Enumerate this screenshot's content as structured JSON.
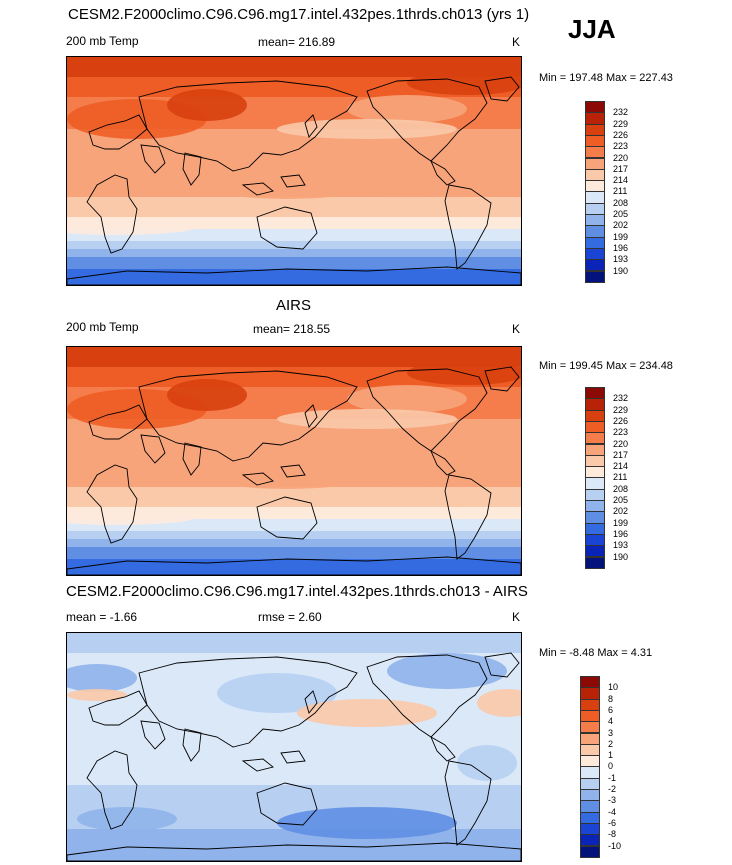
{
  "season": "JJA",
  "panels": [
    {
      "title": "CESM2.F2000climo.C96.C96.mg17.intel.432pes.1thrds.ch013 (yrs 1)",
      "left_label": "200 mb Temp",
      "center_label": "mean= 216.89",
      "unit": "K",
      "minmax": "Min = 197.48 Max = 227.43",
      "colorbar": {
        "labels": [
          "232",
          "229",
          "226",
          "223",
          "220",
          "217",
          "214",
          "211",
          "208",
          "205",
          "202",
          "199",
          "196",
          "193",
          "190"
        ],
        "colors": [
          "#8b0a05",
          "#b82308",
          "#d8400f",
          "#ee5d25",
          "#f47d4b",
          "#f7a47a",
          "#fac9a9",
          "#fdeadb",
          "#dbe8f8",
          "#b7d0f2",
          "#8fb3ea",
          "#5f8ee3",
          "#356be0",
          "#1a44d4",
          "#0a24b8",
          "#04127c"
        ]
      }
    },
    {
      "title": "AIRS",
      "left_label": "200 mb Temp",
      "center_label": "mean= 218.55",
      "unit": "K",
      "minmax": "Min = 199.45 Max = 234.48",
      "colorbar": {
        "labels": [
          "232",
          "229",
          "226",
          "223",
          "220",
          "217",
          "214",
          "211",
          "208",
          "205",
          "202",
          "199",
          "196",
          "193",
          "190"
        ],
        "colors": [
          "#8b0a05",
          "#b82308",
          "#d8400f",
          "#ee5d25",
          "#f47d4b",
          "#f7a47a",
          "#fac9a9",
          "#fdeadb",
          "#dbe8f8",
          "#b7d0f2",
          "#8fb3ea",
          "#5f8ee3",
          "#356be0",
          "#1a44d4",
          "#0a24b8",
          "#04127c"
        ]
      }
    },
    {
      "title": "CESM2.F2000climo.C96.C96.mg17.intel.432pes.1thrds.ch013 - AIRS",
      "left_label": "mean =  -1.66",
      "center_label": "rmse =   2.60",
      "unit": "K",
      "minmax": "Min =  -8.48 Max =   4.31",
      "colorbar": {
        "labels": [
          "10",
          "8",
          "6",
          "4",
          "3",
          "2",
          "1",
          "0",
          "-1",
          "-2",
          "-3",
          "-4",
          "-6",
          "-8",
          "-10"
        ],
        "colors": [
          "#8b0a05",
          "#b82308",
          "#d8400f",
          "#ee5d25",
          "#f47d4b",
          "#f7a47a",
          "#fac9a9",
          "#fdeadb",
          "#dbe8f8",
          "#b7d0f2",
          "#8fb3ea",
          "#5f8ee3",
          "#356be0",
          "#1a44d4",
          "#0a24b8",
          "#04127c"
        ]
      }
    }
  ]
}
